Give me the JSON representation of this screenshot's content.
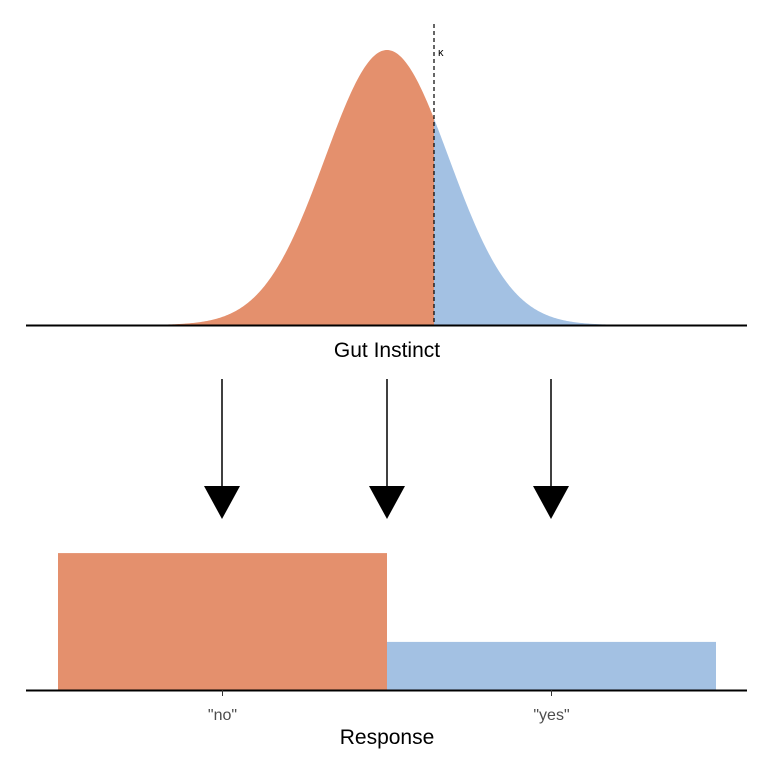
{
  "labels": {
    "kappa": "κ",
    "top_axis": "Gut Instinct",
    "bottom_axis": "Response"
  },
  "distribution": {
    "type": "normal-curve",
    "threshold_label": "κ",
    "regions": [
      {
        "name": "below-threshold",
        "color": "#E4906D"
      },
      {
        "name": "above-threshold",
        "color": "#A3C1E3"
      }
    ]
  },
  "chart_data": {
    "type": "bar",
    "categories": [
      "\"no\"",
      "\"yes\""
    ],
    "values": [
      0.74,
      0.26
    ],
    "xlabel": "Response",
    "ylabel": "",
    "colors": [
      "#E4906D",
      "#A3C1E3"
    ]
  },
  "arrows": {
    "count": 3,
    "color": "#000000"
  }
}
